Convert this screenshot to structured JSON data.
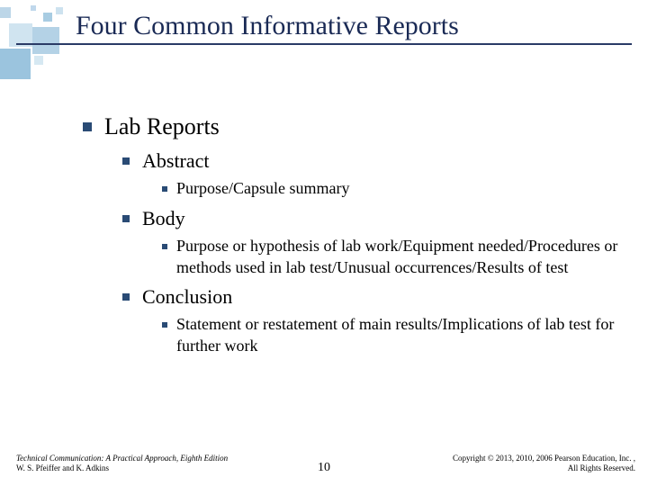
{
  "slide": {
    "title": "Four Common Informative Reports",
    "page_number": "10"
  },
  "colors": {
    "title_color": "#1a2a55",
    "rule_color": "#2a3b66",
    "bullet_color": "#2a4b75",
    "background": "#ffffff"
  },
  "typography": {
    "title_fontsize_pt": 30,
    "lvl1_fontsize_pt": 26,
    "lvl2_fontsize_pt": 22,
    "lvl3_fontsize_pt": 18,
    "footer_fontsize_pt": 9,
    "font_family": "Times New Roman"
  },
  "outline": {
    "lvl1": {
      "label": "Lab Reports"
    },
    "sections": [
      {
        "heading": "Abstract",
        "detail": "Purpose/Capsule summary"
      },
      {
        "heading": "Body",
        "detail": "Purpose or hypothesis of lab work/Equipment needed/Procedures or methods used in lab test/Unusual occurrences/Results of test"
      },
      {
        "heading": "Conclusion",
        "detail": "Statement or restatement of main results/Implications of lab test for further work"
      }
    ]
  },
  "footer": {
    "left_line1": "Technical Communication: A Practical Approach, Eighth Edition",
    "left_line2": "W. S. Pfeiffer and K. Adkins",
    "right_line1": "Copyright © 2013, 2010, 2006 Pearson Education, Inc. ,",
    "right_line2": "All Rights Reserved."
  }
}
